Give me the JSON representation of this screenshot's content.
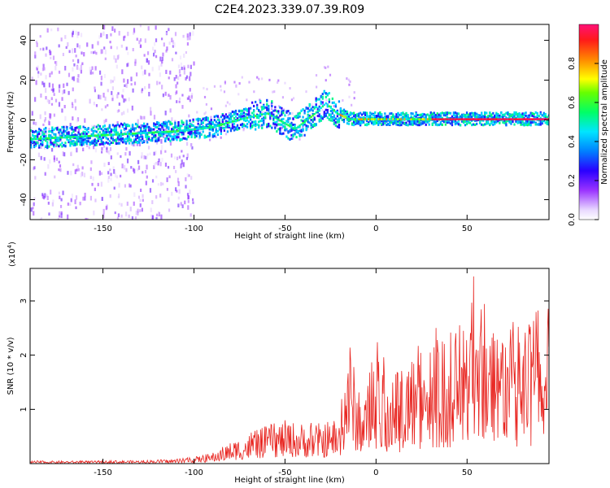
{
  "chart_data": [
    {
      "type": "heatmap",
      "title": "C2E4.2023.339.07.39.R09",
      "xlabel": "Height of straight line (km)",
      "ylabel": "Frequency (Hz)",
      "xlim": [
        -190,
        95
      ],
      "ylim": [
        -50,
        48
      ],
      "x_ticks": [
        -150,
        -100,
        -50,
        0,
        50
      ],
      "y_ticks": [
        -40,
        -20,
        0,
        20,
        40
      ],
      "colorbar": {
        "label": "Normalized spectral amplitude",
        "range": [
          0,
          1
        ],
        "ticks": [
          "0.0",
          "0.2",
          "0.4",
          "0.6",
          "0.8"
        ],
        "colormap": "rainbow (white-purple-blue-cyan-green-yellow-red-magenta)"
      },
      "ridge": {
        "description": "Dominant frequency band along height",
        "x": [
          -190,
          -170,
          -150,
          -130,
          -110,
          -90,
          -75,
          -60,
          -45,
          -35,
          -28,
          -22,
          -15,
          -5,
          0,
          10,
          20,
          30,
          50,
          70,
          92
        ],
        "y": [
          -10,
          -9,
          -8,
          -7,
          -6,
          -4,
          0,
          3,
          -5,
          2,
          8,
          3,
          0,
          0,
          0,
          0,
          0,
          0,
          0,
          0,
          0
        ],
        "peak_amplitude_x_range": [
          30,
          92
        ]
      }
    },
    {
      "type": "line",
      "xlabel": "Height of straight line (km)",
      "ylabel": "SNR (10 * v/v)",
      "y_multiplier_label": "(x10",
      "y_multiplier_exp": "4",
      "y_multiplier_close": ")",
      "xlim": [
        -190,
        95
      ],
      "ylim": [
        0,
        3.6
      ],
      "x_ticks": [
        -150,
        -100,
        -50,
        0,
        50
      ],
      "y_ticks": [
        1,
        2,
        3
      ],
      "series": [
        {
          "color": "#e8241f",
          "envelope": {
            "x": [
              -190,
              -160,
              -130,
              -110,
              -100,
              -90,
              -80,
              -70,
              -60,
              -50,
              -40,
              -30,
              -20,
              -15,
              -10,
              -5,
              0,
              5,
              10,
              20,
              30,
              40,
              50,
              53,
              60,
              70,
              80,
              92
            ],
            "y": [
              0.05,
              0.05,
              0.06,
              0.08,
              0.12,
              0.2,
              0.4,
              0.55,
              0.7,
              0.8,
              0.75,
              0.75,
              0.8,
              2.5,
              1.3,
              1.4,
              2.3,
              1.9,
              1.6,
              2.1,
              2.5,
              2.5,
              2.7,
              3.6,
              2.9,
              2.7,
              2.6,
              2.9
            ]
          }
        }
      ]
    }
  ]
}
